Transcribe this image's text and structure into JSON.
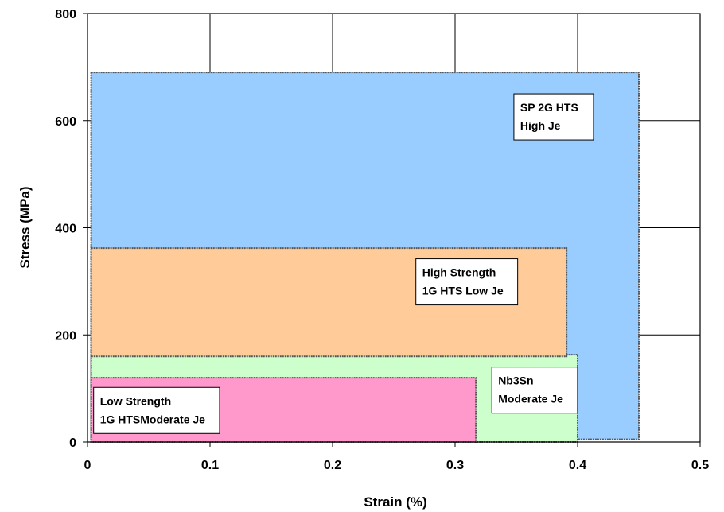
{
  "chart_data": {
    "type": "area",
    "title": "",
    "xlabel": "Strain (%)",
    "ylabel": "Stress (MPa)",
    "xlim": [
      0,
      0.5
    ],
    "ylim": [
      0,
      800
    ],
    "x_ticks": [
      0,
      0.1,
      0.2,
      0.3,
      0.4,
      0.5
    ],
    "x_tick_labels": [
      "0",
      "0.1",
      "0.2",
      "0.3",
      "0.4",
      "0.5"
    ],
    "y_ticks": [
      0,
      200,
      400,
      600,
      800
    ],
    "y_tick_labels": [
      "0",
      "200",
      "400",
      "600",
      "800"
    ],
    "grid": true,
    "regions": [
      {
        "id": "sp2g",
        "label_lines": [
          "SP 2G HTS",
          "High Je"
        ],
        "x0": 0.003,
        "x1": 0.45,
        "y0": 5,
        "y1": 690,
        "color": "#99ccff",
        "label_anchor": {
          "x": 0.348,
          "y": 650
        }
      },
      {
        "id": "nb3sn",
        "label_lines": [
          "Nb3Sn",
          "Moderate Je"
        ],
        "x0": 0.003,
        "x1": 0.4,
        "y0": 0,
        "y1": 163,
        "color": "#ccffcc",
        "label_anchor": {
          "x": 0.33,
          "y": 140
        }
      },
      {
        "id": "hs1g",
        "label_lines": [
          "High Strength",
          "1G HTS  Low Je"
        ],
        "x0": 0.003,
        "x1": 0.391,
        "y0": 160,
        "y1": 362,
        "color": "#ffcc99",
        "label_anchor": {
          "x": 0.268,
          "y": 342
        }
      },
      {
        "id": "ls1g",
        "label_lines": [
          "Low Strength",
          "1G HTSModerate Je"
        ],
        "x0": 0.003,
        "x1": 0.317,
        "y0": 0,
        "y1": 120,
        "color": "#ff99cc",
        "label_anchor": {
          "x": 0.005,
          "y": 102
        }
      }
    ]
  }
}
